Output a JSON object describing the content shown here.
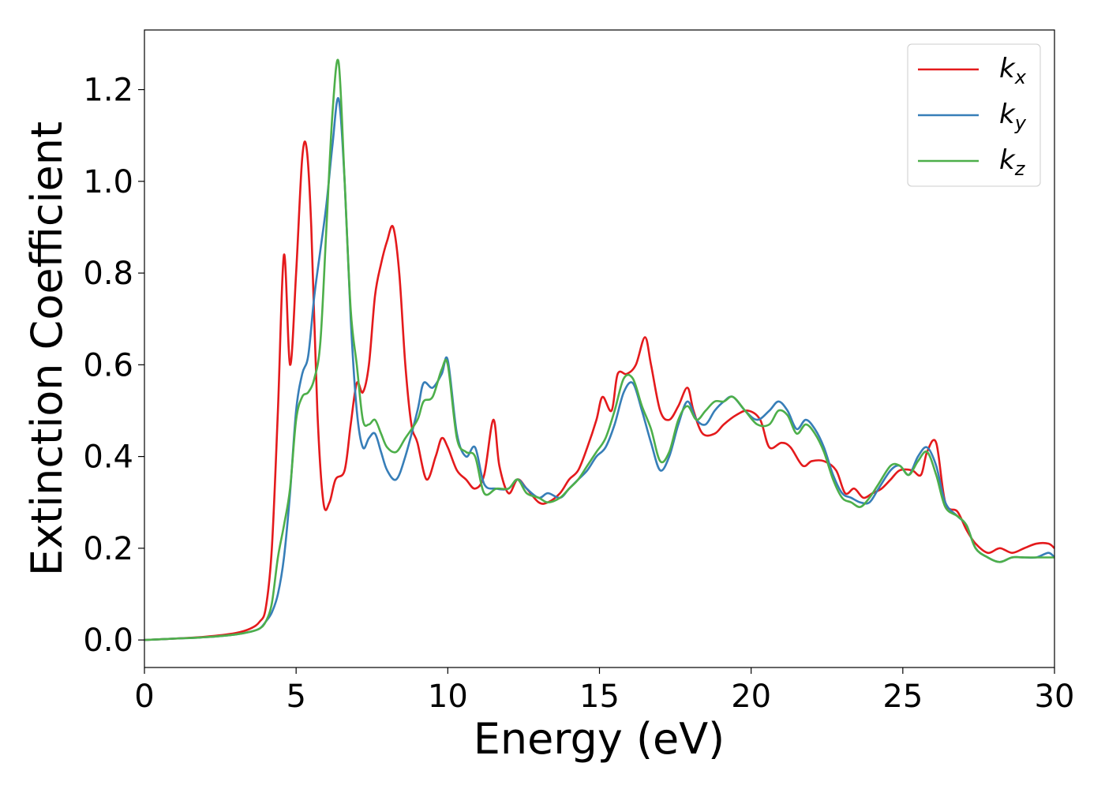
{
  "chart_data": {
    "type": "line",
    "xlabel": "Energy (eV)",
    "ylabel": "Extinction Coefficient",
    "xlim": [
      0,
      30
    ],
    "ylim": [
      -0.06,
      1.33
    ],
    "xticks": [
      0,
      5,
      10,
      15,
      20,
      25,
      30
    ],
    "xtick_labels": [
      "0",
      "5",
      "10",
      "15",
      "20",
      "25",
      "30"
    ],
    "yticks": [
      0.0,
      0.2,
      0.4,
      0.6,
      0.8,
      1.0,
      1.2
    ],
    "ytick_labels": [
      "0.0",
      "0.2",
      "0.4",
      "0.6",
      "0.8",
      "1.0",
      "1.2"
    ],
    "grid": false,
    "legend_position": "top-right",
    "series": [
      {
        "name": "k_x",
        "label_main": "k",
        "label_sub": "x",
        "color": "#e41a1c",
        "x": [
          0,
          1,
          2,
          3,
          3.5,
          3.8,
          4.0,
          4.2,
          4.4,
          4.6,
          4.8,
          5.0,
          5.2,
          5.35,
          5.5,
          5.7,
          5.9,
          6.1,
          6.3,
          6.6,
          6.8,
          7.0,
          7.2,
          7.4,
          7.6,
          7.8,
          8.0,
          8.2,
          8.4,
          8.6,
          8.8,
          9.0,
          9.3,
          9.6,
          9.8,
          10.0,
          10.3,
          10.6,
          10.9,
          11.2,
          11.5,
          11.7,
          12.0,
          12.3,
          12.6,
          13.0,
          13.3,
          13.7,
          14.0,
          14.3,
          14.6,
          14.9,
          15.1,
          15.4,
          15.6,
          15.9,
          16.2,
          16.5,
          16.7,
          17.0,
          17.3,
          17.6,
          17.9,
          18.1,
          18.4,
          18.8,
          19.1,
          19.5,
          19.9,
          20.3,
          20.6,
          21.0,
          21.3,
          21.7,
          22.0,
          22.4,
          22.8,
          23.1,
          23.4,
          23.7,
          24.0,
          24.3,
          24.6,
          24.9,
          25.3,
          25.6,
          25.8,
          26.1,
          26.4,
          26.8,
          27.1,
          27.4,
          27.8,
          28.2,
          28.6,
          29.0,
          29.4,
          29.8,
          30
        ],
        "y": [
          0.0,
          0.003,
          0.007,
          0.015,
          0.025,
          0.04,
          0.07,
          0.2,
          0.5,
          0.84,
          0.6,
          0.8,
          1.05,
          1.07,
          0.9,
          0.5,
          0.3,
          0.3,
          0.35,
          0.37,
          0.47,
          0.56,
          0.54,
          0.6,
          0.75,
          0.82,
          0.87,
          0.9,
          0.8,
          0.6,
          0.47,
          0.43,
          0.35,
          0.4,
          0.44,
          0.42,
          0.37,
          0.35,
          0.33,
          0.36,
          0.48,
          0.38,
          0.32,
          0.35,
          0.33,
          0.3,
          0.3,
          0.32,
          0.35,
          0.37,
          0.42,
          0.48,
          0.53,
          0.5,
          0.58,
          0.58,
          0.6,
          0.66,
          0.6,
          0.5,
          0.48,
          0.51,
          0.55,
          0.5,
          0.45,
          0.45,
          0.47,
          0.49,
          0.5,
          0.48,
          0.42,
          0.43,
          0.42,
          0.38,
          0.39,
          0.39,
          0.37,
          0.32,
          0.33,
          0.31,
          0.32,
          0.33,
          0.35,
          0.37,
          0.37,
          0.36,
          0.41,
          0.43,
          0.3,
          0.28,
          0.24,
          0.21,
          0.19,
          0.2,
          0.19,
          0.2,
          0.21,
          0.21,
          0.2
        ]
      },
      {
        "name": "k_y",
        "label_main": "k",
        "label_sub": "y",
        "color": "#377eb8",
        "x": [
          0,
          1,
          2,
          3,
          3.5,
          3.8,
          4.0,
          4.2,
          4.4,
          4.6,
          4.8,
          5.0,
          5.2,
          5.4,
          5.6,
          5.8,
          6.0,
          6.2,
          6.4,
          6.6,
          6.8,
          7.0,
          7.2,
          7.4,
          7.6,
          7.8,
          8.0,
          8.3,
          8.6,
          9.0,
          9.2,
          9.5,
          9.8,
          10.0,
          10.3,
          10.6,
          10.9,
          11.2,
          11.6,
          12.0,
          12.3,
          12.6,
          13.0,
          13.3,
          13.7,
          14.0,
          14.3,
          14.6,
          14.9,
          15.2,
          15.5,
          15.8,
          16.1,
          16.4,
          16.7,
          17.0,
          17.3,
          17.6,
          17.9,
          18.2,
          18.5,
          18.8,
          19.1,
          19.4,
          19.8,
          20.2,
          20.6,
          20.9,
          21.2,
          21.5,
          21.8,
          22.1,
          22.4,
          22.7,
          23.0,
          23.3,
          23.6,
          23.9,
          24.2,
          24.6,
          24.9,
          25.2,
          25.5,
          25.8,
          26.1,
          26.4,
          26.8,
          27.1,
          27.4,
          27.8,
          28.2,
          28.6,
          29.0,
          29.4,
          29.8,
          30
        ],
        "y": [
          0.0,
          0.003,
          0.006,
          0.012,
          0.018,
          0.025,
          0.04,
          0.06,
          0.1,
          0.18,
          0.32,
          0.5,
          0.58,
          0.62,
          0.75,
          0.85,
          0.95,
          1.08,
          1.18,
          1.0,
          0.7,
          0.5,
          0.42,
          0.44,
          0.45,
          0.41,
          0.37,
          0.35,
          0.4,
          0.5,
          0.56,
          0.55,
          0.58,
          0.61,
          0.45,
          0.4,
          0.42,
          0.34,
          0.33,
          0.33,
          0.35,
          0.33,
          0.31,
          0.32,
          0.31,
          0.33,
          0.35,
          0.37,
          0.4,
          0.42,
          0.47,
          0.54,
          0.56,
          0.5,
          0.43,
          0.37,
          0.4,
          0.47,
          0.52,
          0.48,
          0.47,
          0.5,
          0.52,
          0.53,
          0.5,
          0.48,
          0.5,
          0.52,
          0.5,
          0.46,
          0.48,
          0.46,
          0.42,
          0.36,
          0.32,
          0.31,
          0.3,
          0.3,
          0.33,
          0.37,
          0.38,
          0.36,
          0.4,
          0.42,
          0.38,
          0.3,
          0.27,
          0.25,
          0.2,
          0.18,
          0.17,
          0.18,
          0.18,
          0.18,
          0.19,
          0.18
        ]
      },
      {
        "name": "k_z",
        "label_main": "k",
        "label_sub": "z",
        "color": "#4daf4a",
        "x": [
          0,
          1,
          2,
          3,
          3.5,
          3.8,
          4.0,
          4.2,
          4.4,
          4.6,
          4.8,
          5.0,
          5.2,
          5.4,
          5.6,
          5.8,
          6.0,
          6.2,
          6.4,
          6.6,
          6.8,
          7.0,
          7.2,
          7.4,
          7.6,
          7.8,
          8.0,
          8.3,
          8.6,
          9.0,
          9.2,
          9.5,
          9.8,
          10.0,
          10.3,
          10.6,
          10.9,
          11.2,
          11.6,
          12.0,
          12.3,
          12.6,
          13.0,
          13.3,
          13.7,
          14.0,
          14.3,
          14.6,
          14.9,
          15.2,
          15.5,
          15.8,
          16.1,
          16.4,
          16.7,
          17.0,
          17.3,
          17.6,
          17.9,
          18.2,
          18.5,
          18.8,
          19.1,
          19.4,
          19.8,
          20.2,
          20.6,
          20.9,
          21.2,
          21.5,
          21.8,
          22.1,
          22.4,
          22.7,
          23.0,
          23.3,
          23.6,
          23.9,
          24.2,
          24.6,
          24.9,
          25.2,
          25.5,
          25.8,
          26.1,
          26.4,
          26.8,
          27.1,
          27.4,
          27.8,
          28.2,
          28.6,
          29.0,
          29.4,
          29.8,
          30
        ],
        "y": [
          0.0,
          0.003,
          0.006,
          0.012,
          0.018,
          0.025,
          0.04,
          0.08,
          0.18,
          0.25,
          0.33,
          0.48,
          0.53,
          0.54,
          0.57,
          0.65,
          0.9,
          1.15,
          1.26,
          1.0,
          0.72,
          0.6,
          0.48,
          0.47,
          0.48,
          0.45,
          0.42,
          0.41,
          0.44,
          0.48,
          0.52,
          0.53,
          0.59,
          0.6,
          0.44,
          0.41,
          0.4,
          0.32,
          0.33,
          0.33,
          0.35,
          0.32,
          0.31,
          0.3,
          0.31,
          0.33,
          0.35,
          0.38,
          0.41,
          0.44,
          0.5,
          0.57,
          0.57,
          0.51,
          0.46,
          0.39,
          0.41,
          0.48,
          0.51,
          0.48,
          0.5,
          0.52,
          0.52,
          0.53,
          0.5,
          0.47,
          0.47,
          0.5,
          0.49,
          0.45,
          0.47,
          0.45,
          0.41,
          0.35,
          0.31,
          0.3,
          0.29,
          0.31,
          0.34,
          0.38,
          0.38,
          0.36,
          0.39,
          0.41,
          0.36,
          0.29,
          0.27,
          0.25,
          0.2,
          0.18,
          0.17,
          0.18,
          0.18,
          0.18,
          0.18,
          0.18
        ]
      }
    ]
  }
}
